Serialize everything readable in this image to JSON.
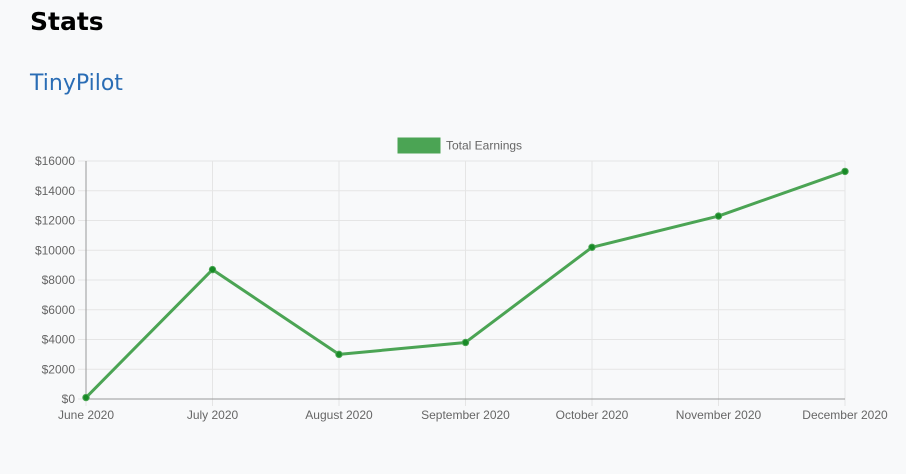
{
  "page": {
    "title": "Stats",
    "product_link": "TinyPilot"
  },
  "colors": {
    "series_line": "#4ba454",
    "series_point": "#178a26",
    "grid": "#e5e5e5",
    "axis": "#999999",
    "tick_label": "#666666",
    "product_link": "#2a6db5"
  },
  "chart_data": {
    "type": "line",
    "categories": [
      "June 2020",
      "July 2020",
      "August 2020",
      "September 2020",
      "October 2020",
      "November 2020",
      "December 2020"
    ],
    "series": [
      {
        "name": "Total Earnings",
        "values": [
          100,
          8700,
          3000,
          3800,
          10200,
          12300,
          15300
        ]
      }
    ],
    "ylim": [
      0,
      16000
    ],
    "yticks": [
      0,
      2000,
      4000,
      6000,
      8000,
      10000,
      12000,
      14000,
      16000
    ],
    "ytick_labels": [
      "$0",
      "$2000",
      "$4000",
      "$6000",
      "$8000",
      "$10000",
      "$12000",
      "$14000",
      "$16000"
    ],
    "legend_position": "top-center",
    "grid": true
  }
}
